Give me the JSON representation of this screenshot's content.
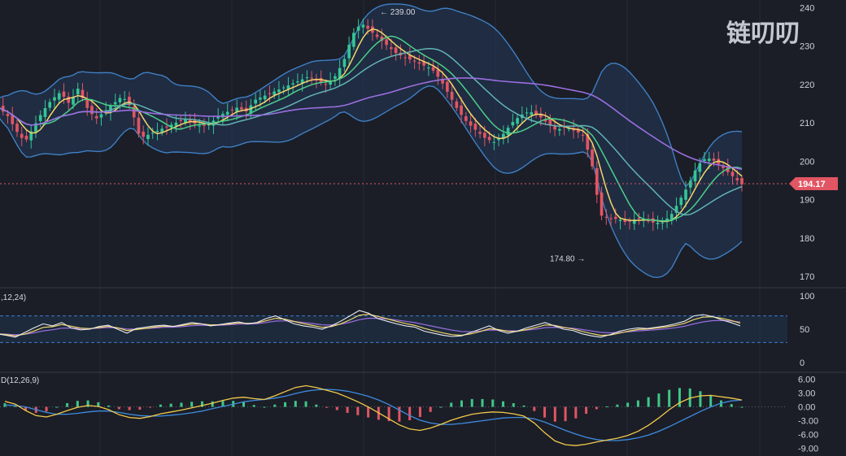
{
  "chart_data": {
    "type": "line",
    "watermark": "链叨叨",
    "price_axis": {
      "ticks": [
        240,
        230,
        220,
        210,
        200,
        190,
        180,
        170
      ],
      "ylim": [
        167.5,
        242
      ]
    },
    "last_price": {
      "value": 194.17,
      "label": "194.17",
      "color": "#e25563"
    },
    "annotations": [
      {
        "label": "239.00",
        "value": 239.0,
        "type": "high"
      },
      {
        "label": "174.80",
        "value": 174.8,
        "type": "low"
      }
    ],
    "candle_colors": {
      "up": "#34c596",
      "down": "#e25563"
    },
    "series": [
      {
        "name": "close",
        "values": [
          214,
          212,
          208,
          205,
          209,
          213,
          216,
          218,
          215,
          219,
          214,
          211,
          213,
          215,
          217,
          214,
          206,
          207,
          208,
          209,
          210,
          211,
          210,
          209,
          210,
          212,
          213,
          214,
          213,
          216,
          217,
          218,
          219,
          220,
          221,
          222,
          221,
          220,
          222,
          226,
          233,
          236,
          234,
          232,
          230,
          228,
          227,
          226,
          225,
          224,
          221,
          217,
          213,
          210,
          208,
          206,
          205,
          207,
          210,
          212,
          213,
          212,
          210,
          208,
          209,
          208,
          207,
          200,
          186,
          185,
          185,
          184,
          185,
          185,
          184,
          184,
          186,
          190,
          194,
          199,
          201,
          200,
          198,
          196,
          194
        ]
      }
    ],
    "bollinger": {
      "color": "#3f7fc4"
    },
    "moving_averages": [
      {
        "color": "#f3d66b"
      },
      {
        "color": "#4ccf8a"
      },
      {
        "color": "#62b3b5"
      },
      {
        "color": "#9b6ee0"
      }
    ],
    "rsi": {
      "label": ",12,24)",
      "ticks": [
        100,
        50,
        0
      ],
      "bands": [
        70,
        30
      ],
      "values": [
        43,
        41,
        38,
        45,
        52,
        58,
        55,
        60,
        52,
        49,
        50,
        54,
        56,
        50,
        44,
        51,
        53,
        55,
        56,
        54,
        57,
        60,
        58,
        55,
        57,
        59,
        61,
        58,
        60,
        66,
        70,
        64,
        58,
        55,
        53,
        50,
        55,
        62,
        70,
        78,
        74,
        66,
        62,
        58,
        55,
        53,
        47,
        44,
        41,
        39,
        40,
        45,
        50,
        55,
        48,
        44,
        47,
        52,
        56,
        60,
        55,
        50,
        48,
        43,
        40,
        38,
        42,
        47,
        50,
        52,
        51,
        53,
        55,
        58,
        62,
        70,
        72,
        69,
        64,
        60,
        55
      ]
    },
    "macd": {
      "label": "D(12,26,9)",
      "ticks": [
        "6.00",
        "3.00",
        "0.00",
        "-3.00",
        "-6.00",
        "-9.00"
      ],
      "ylim": [
        -9.6,
        6.8
      ],
      "macd_line": [
        1.2,
        0.6,
        -0.8,
        -1.9,
        -2.2,
        -1.6,
        -0.8,
        -0.1,
        0.3,
        0.1,
        -0.6,
        -1.7,
        -2.3,
        -2.5,
        -2.1,
        -1.5,
        -1.1,
        -0.7,
        -0.2,
        0.3,
        0.8,
        1.4,
        1.9,
        2.1,
        1.8,
        1.6,
        2.4,
        3.3,
        4.2,
        4.6,
        4.2,
        3.6,
        3.0,
        2.1,
        1.1,
        0.0,
        -1.3,
        -2.6,
        -3.9,
        -4.8,
        -5.1,
        -4.6,
        -3.8,
        -2.9,
        -2.2,
        -1.6,
        -1.3,
        -1.1,
        -1.2,
        -1.5,
        -2.0,
        -3.5,
        -5.6,
        -7.4,
        -8.2,
        -8.4,
        -8.1,
        -7.6,
        -7.2,
        -6.8,
        -6.2,
        -5.3,
        -4.0,
        -2.4,
        -0.6,
        0.9,
        1.9,
        2.4,
        2.5,
        2.2,
        1.9,
        1.5
      ],
      "signal_line": [
        0.4,
        0.3,
        0.0,
        -0.6,
        -1.2,
        -1.6,
        -1.6,
        -1.4,
        -1.1,
        -0.9,
        -0.9,
        -1.2,
        -1.6,
        -1.9,
        -2.0,
        -2.0,
        -1.8,
        -1.6,
        -1.3,
        -0.9,
        -0.4,
        0.1,
        0.6,
        1.1,
        1.4,
        1.6,
        1.9,
        2.3,
        2.9,
        3.4,
        3.7,
        3.8,
        3.7,
        3.4,
        2.9,
        2.3,
        1.5,
        0.5,
        -0.7,
        -1.9,
        -2.9,
        -3.5,
        -3.8,
        -3.8,
        -3.6,
        -3.3,
        -3.0,
        -2.7,
        -2.4,
        -2.3,
        -2.3,
        -2.6,
        -3.3,
        -4.2,
        -5.1,
        -5.9,
        -6.6,
        -7.1,
        -7.3,
        -7.3,
        -7.1,
        -6.7,
        -6.1,
        -5.3,
        -4.3,
        -3.2,
        -2.1,
        -1.0,
        0.0,
        0.8,
        1.3,
        1.5
      ],
      "histogram": [
        0.8,
        0.3,
        -0.8,
        -1.3,
        -1.0,
        0.0,
        0.8,
        1.3,
        1.4,
        1.0,
        0.3,
        -0.5,
        -0.7,
        -0.6,
        -0.1,
        0.5,
        0.7,
        0.9,
        1.1,
        1.2,
        1.2,
        1.3,
        1.3,
        1.0,
        0.4,
        0.0,
        0.5,
        1.0,
        1.3,
        1.2,
        0.5,
        -0.2,
        -0.7,
        -1.3,
        -1.8,
        -2.3,
        -2.8,
        -3.1,
        -3.2,
        -2.9,
        -2.2,
        -1.1,
        0.0,
        0.9,
        1.4,
        1.7,
        1.7,
        1.6,
        1.2,
        0.8,
        0.3,
        -0.9,
        -2.3,
        -3.2,
        -3.1,
        -2.5,
        -1.5,
        -0.5,
        0.1,
        0.5,
        0.9,
        1.4,
        2.1,
        2.9,
        3.7,
        4.1,
        4.0,
        3.4,
        2.5,
        1.4,
        0.6,
        0.0
      ]
    }
  }
}
